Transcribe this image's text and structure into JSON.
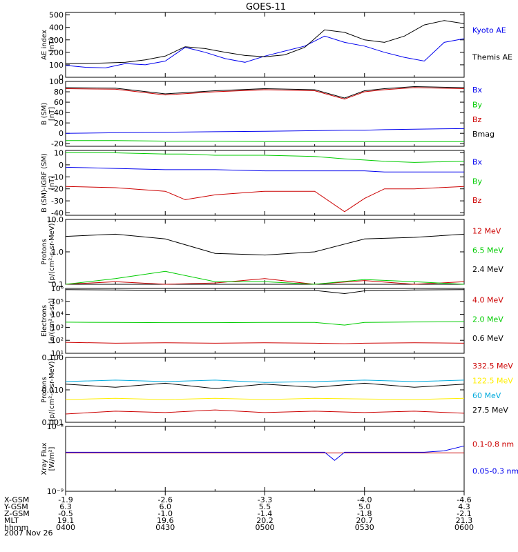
{
  "title": "GOES-11",
  "time_ticks": [
    "0400",
    "0430",
    "0500",
    "0530",
    "0600"
  ],
  "orbit_rows": [
    {
      "label": "X-GSM",
      "values": [
        "-1.9",
        "-2.6",
        "-3.3",
        "-4.0",
        "-4.6"
      ]
    },
    {
      "label": "Y-GSM",
      "values": [
        "6.3",
        "6.0",
        "5.5",
        "5.0",
        "4.3"
      ]
    },
    {
      "label": "Z-GSM",
      "values": [
        "-0.5",
        "-1.0",
        "-1.4",
        "-1.8",
        "-2.1"
      ]
    },
    {
      "label": "MLT",
      "values": [
        "19.1",
        "19.6",
        "20.2",
        "20.7",
        "21.3"
      ]
    },
    {
      "label": "hhmm",
      "values": [
        "0400",
        "0430",
        "0500",
        "0530",
        "0600"
      ]
    }
  ],
  "date": "2007 Nov 26",
  "colors": {
    "black": "#000000",
    "blue": "#0000ee",
    "green": "#00cc00",
    "red": "#cc0000",
    "yellow": "#ffee00",
    "cyan": "#00aadd"
  },
  "chart_data": [
    {
      "type": "line",
      "ylabel": [
        "AE index",
        "[nT]"
      ],
      "scale": "linear",
      "ylim": [
        0,
        520
      ],
      "ticks": [
        0,
        100,
        200,
        300,
        400,
        500
      ],
      "tick_labels": [
        "0",
        "100",
        "200",
        "300",
        "400",
        "500"
      ],
      "x_hours": [
        4.0,
        4.1,
        4.2,
        4.3,
        4.4,
        4.5,
        4.6,
        4.7,
        4.8,
        4.9,
        5.0,
        5.1,
        5.2,
        5.3,
        5.4,
        5.5,
        5.6,
        5.7,
        5.8,
        5.9,
        6.0
      ],
      "series": [
        {
          "name": "Kyoto AE",
          "color": "#0000ee",
          "values": [
            95,
            80,
            75,
            110,
            100,
            130,
            240,
            200,
            150,
            120,
            170,
            210,
            250,
            330,
            280,
            250,
            200,
            160,
            130,
            280,
            310
          ]
        },
        {
          "name": "Themis AE",
          "color": "#000000",
          "values": [
            110,
            110,
            115,
            120,
            140,
            170,
            245,
            230,
            200,
            175,
            165,
            180,
            240,
            380,
            360,
            300,
            280,
            330,
            420,
            455,
            430
          ]
        }
      ]
    },
    {
      "type": "line",
      "ylabel": [
        "B (SM)",
        "[nT]"
      ],
      "scale": "linear",
      "ylim": [
        -25,
        100
      ],
      "ticks": [
        -20,
        0,
        20,
        40,
        60,
        80,
        100
      ],
      "tick_labels": [
        "-20",
        "0",
        "20",
        "40",
        "60",
        "80",
        "100"
      ],
      "x_hours": [
        4.0,
        4.25,
        4.5,
        4.75,
        5.0,
        5.25,
        5.4,
        5.5,
        5.6,
        5.75,
        6.0
      ],
      "series": [
        {
          "name": "Bx",
          "color": "#0000ee",
          "values": [
            0,
            1,
            2,
            3,
            4,
            5,
            6,
            6,
            7,
            8,
            9
          ]
        },
        {
          "name": "By",
          "color": "#00cc00",
          "values": [
            -14,
            -14,
            -15,
            -15,
            -16,
            -16,
            -16,
            -16,
            -16,
            -16,
            -16
          ]
        },
        {
          "name": "Bz",
          "color": "#cc0000",
          "values": [
            86,
            85,
            74,
            80,
            84,
            82,
            66,
            80,
            84,
            88,
            86
          ]
        },
        {
          "name": "Bmag",
          "color": "#000000",
          "values": [
            88,
            87,
            76,
            82,
            86,
            84,
            68,
            82,
            86,
            90,
            88
          ]
        }
      ]
    },
    {
      "type": "line",
      "ylabel": [
        "B (SM)-IGRF (SM)",
        "[nT]"
      ],
      "scale": "linear",
      "ylim": [
        -42,
        12
      ],
      "ticks": [
        -40,
        -30,
        -20,
        -10,
        0,
        10
      ],
      "tick_labels": [
        "-40",
        "-30",
        "-20",
        "-10",
        "0",
        "10"
      ],
      "x_hours": [
        4.0,
        4.25,
        4.5,
        4.6,
        4.75,
        5.0,
        5.25,
        5.4,
        5.5,
        5.6,
        5.75,
        6.0
      ],
      "series": [
        {
          "name": "Bx",
          "color": "#0000ee",
          "values": [
            -2,
            -3,
            -4,
            -4,
            -4,
            -5,
            -5,
            -5,
            -5,
            -6,
            -6,
            -6
          ]
        },
        {
          "name": "By",
          "color": "#00cc00",
          "values": [
            10,
            10,
            9,
            9,
            8,
            8,
            7,
            5,
            4,
            3,
            2,
            3
          ]
        },
        {
          "name": "Bz",
          "color": "#cc0000",
          "values": [
            -18,
            -19,
            -22,
            -29,
            -25,
            -22,
            -22,
            -39,
            -28,
            -20,
            -20,
            -18
          ]
        }
      ]
    },
    {
      "type": "line",
      "ylabel": [
        "Protons",
        "[p/(cm²-s-sr-MeV)]"
      ],
      "scale": "log",
      "ylim": [
        0.1,
        10
      ],
      "ticks": [
        0.1,
        1,
        10
      ],
      "tick_labels": [
        "0.1",
        "1.0",
        "10.0"
      ],
      "x_hours": [
        4.0,
        4.25,
        4.5,
        4.75,
        5.0,
        5.25,
        5.5,
        5.75,
        6.0
      ],
      "series": [
        {
          "name": "12 MeV",
          "color": "#cc0000",
          "values": [
            0.1,
            0.12,
            0.1,
            0.11,
            0.15,
            0.1,
            0.13,
            0.1,
            0.12
          ]
        },
        {
          "name": "6.5 MeV",
          "color": "#00cc00",
          "values": [
            0.1,
            0.15,
            0.25,
            0.12,
            0.12,
            0.1,
            0.14,
            0.12,
            0.1
          ]
        },
        {
          "name": "2.4 MeV",
          "color": "#000000",
          "values": [
            3.0,
            3.5,
            2.5,
            0.9,
            0.8,
            1.0,
            2.5,
            2.8,
            3.5
          ]
        }
      ]
    },
    {
      "type": "line",
      "ylabel": [
        "Electrons",
        "[e/(cm²-s-sr)]"
      ],
      "scale": "log",
      "ylim": [
        10,
        1000000
      ],
      "ticks": [
        10,
        100,
        1000,
        10000,
        100000,
        1000000
      ],
      "tick_labels": [
        "10¹",
        "10²",
        "10³",
        "10⁴",
        "10⁵",
        "10⁶"
      ],
      "x_hours": [
        4.0,
        4.25,
        4.5,
        4.75,
        5.0,
        5.25,
        5.4,
        5.5,
        5.75,
        6.0
      ],
      "series": [
        {
          "name": "4.0 MeV",
          "color": "#cc0000",
          "values": [
            70,
            60,
            65,
            60,
            65,
            60,
            55,
            60,
            65,
            60
          ]
        },
        {
          "name": "2.0 MeV",
          "color": "#00cc00",
          "values": [
            2500,
            2400,
            2300,
            2300,
            2400,
            2400,
            1500,
            2400,
            2600,
            2700
          ]
        },
        {
          "name": "0.6 MeV",
          "color": "#000000",
          "values": [
            800000,
            750000,
            700000,
            700000,
            720000,
            700000,
            400000,
            650000,
            750000,
            800000
          ]
        }
      ]
    },
    {
      "type": "line",
      "ylabel": [
        "Protons",
        "[p/(cm²-s-sr-MeV)]"
      ],
      "scale": "log",
      "ylim": [
        0.001,
        0.1
      ],
      "ticks": [
        0.001,
        0.01,
        0.1
      ],
      "tick_labels": [
        "0.001",
        "0.010",
        "0.100"
      ],
      "x_hours": [
        4.0,
        4.25,
        4.5,
        4.75,
        5.0,
        5.25,
        5.5,
        5.75,
        6.0
      ],
      "series": [
        {
          "name": "332.5 MeV",
          "color": "#cc0000",
          "values": [
            0.0018,
            0.0022,
            0.002,
            0.0024,
            0.002,
            0.0022,
            0.002,
            0.0022,
            0.0019
          ]
        },
        {
          "name": "122.5 MeV",
          "color": "#ffee00",
          "values": [
            0.005,
            0.0055,
            0.005,
            0.0055,
            0.005,
            0.0055,
            0.0052,
            0.005,
            0.0055
          ]
        },
        {
          "name": "60 MeV",
          "color": "#00aadd",
          "values": [
            0.018,
            0.02,
            0.018,
            0.02,
            0.017,
            0.018,
            0.02,
            0.018,
            0.02
          ]
        },
        {
          "name": "27.5 MeV",
          "color": "#000000",
          "values": [
            0.015,
            0.012,
            0.016,
            0.011,
            0.015,
            0.012,
            0.016,
            0.012,
            0.015
          ]
        }
      ]
    },
    {
      "type": "line",
      "ylabel": [
        "Xray Flux",
        "[W/m²]"
      ],
      "scale": "log",
      "ylim": [
        1e-09,
        1e-08
      ],
      "ticks": [
        1e-09,
        1e-08
      ],
      "tick_labels": [
        "10⁻⁹",
        "10⁻⁸"
      ],
      "x_hours": [
        4.0,
        4.5,
        5.0,
        5.3,
        5.35,
        5.4,
        5.5,
        5.8,
        5.9,
        6.0
      ],
      "series": [
        {
          "name": "0.1-0.8 nm",
          "color": "#cc0000",
          "values": [
            3.9e-09,
            3.9e-09,
            3.9e-09,
            3.9e-09,
            3.9e-09,
            3.9e-09,
            3.9e-09,
            3.9e-09,
            3.9e-09,
            3.9e-09
          ]
        },
        {
          "name": "0.05-0.3 nm",
          "color": "#0000ee",
          "values": [
            4e-09,
            4e-09,
            4e-09,
            4e-09,
            3e-09,
            4e-09,
            4e-09,
            4e-09,
            4.2e-09,
            5e-09
          ]
        }
      ]
    }
  ]
}
